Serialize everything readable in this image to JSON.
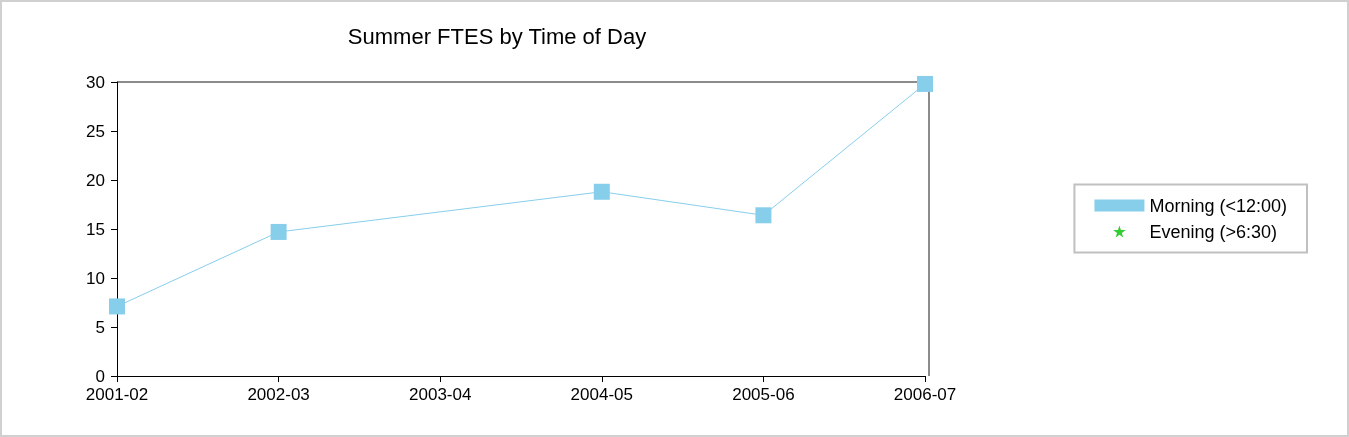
{
  "chart_data": {
    "type": "line",
    "title": "Summer FTES by Time of Day",
    "categories": [
      "2001-02",
      "2002-03",
      "2003-04",
      "2004-05",
      "2005-06",
      "2006-07"
    ],
    "series": [
      {
        "name": "Morning (<12:00)",
        "color": "#87ceeb",
        "marker": "square",
        "values": [
          7.1,
          14.7,
          null,
          18.8,
          16.4,
          29.8
        ]
      },
      {
        "name": "Evening (>6:30)",
        "color": "#33cc33",
        "marker": "star",
        "values": [
          null,
          null,
          null,
          null,
          null,
          null
        ]
      }
    ],
    "ylim": [
      0,
      30
    ],
    "yticks": [
      0,
      5,
      10,
      15,
      20,
      25,
      30
    ],
    "grid": false,
    "legend": "right",
    "line_style": "solid"
  }
}
